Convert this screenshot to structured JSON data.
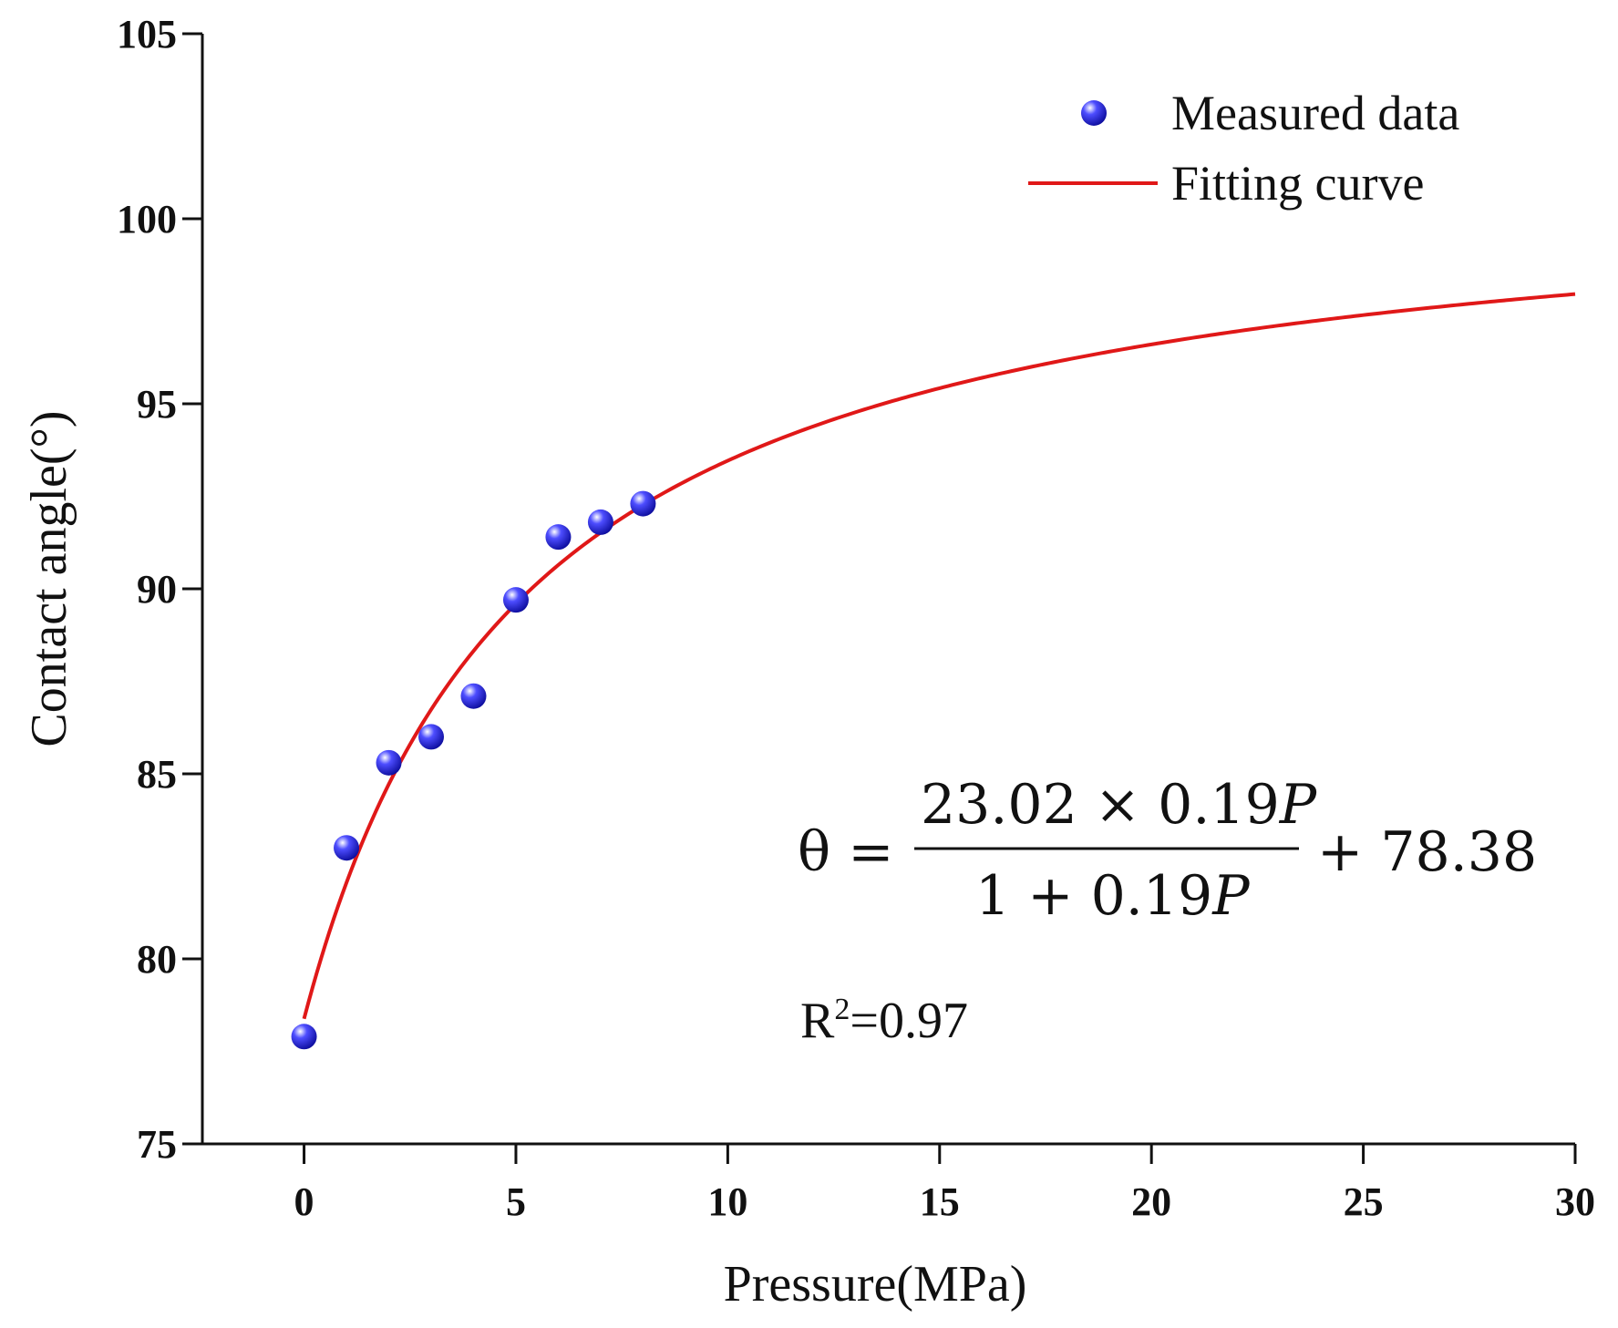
{
  "chart_data": {
    "type": "scatter",
    "title": "",
    "xlabel": "Pressure(MPa)",
    "ylabel": "Contact angle(°)",
    "xlim": [
      -2.4,
      30
    ],
    "ylim": [
      75,
      105
    ],
    "xticks": [
      0,
      5,
      10,
      15,
      20,
      25,
      30
    ],
    "yticks": [
      75,
      80,
      85,
      90,
      95,
      100,
      105
    ],
    "grid": false,
    "legend_position": "top-right",
    "series": [
      {
        "name": "Measured data",
        "kind": "scatter",
        "color": "#1a1ad6",
        "points": [
          {
            "x": 0,
            "y": 77.9
          },
          {
            "x": 1,
            "y": 83.0
          },
          {
            "x": 2,
            "y": 85.3
          },
          {
            "x": 3,
            "y": 86.0
          },
          {
            "x": 4,
            "y": 87.1
          },
          {
            "x": 5,
            "y": 89.7
          },
          {
            "x": 6,
            "y": 91.4
          },
          {
            "x": 7,
            "y": 91.8
          },
          {
            "x": 8,
            "y": 92.3
          }
        ]
      },
      {
        "name": "Fitting curve",
        "kind": "line",
        "color": "#e01818",
        "model": {
          "a": 23.02,
          "b": 0.19,
          "c": 78.38
        },
        "x_range": [
          0,
          30
        ]
      }
    ],
    "annotations": {
      "eq_lhs": "θ =",
      "eq_num_coef": "23.02 × 0.19",
      "eq_den_coef": "1 + 0.19",
      "eq_var": "P",
      "eq_rhs": "+ 78.38",
      "r2_base": "R",
      "r2_sup": "2",
      "r2_value": "=0.97"
    }
  }
}
